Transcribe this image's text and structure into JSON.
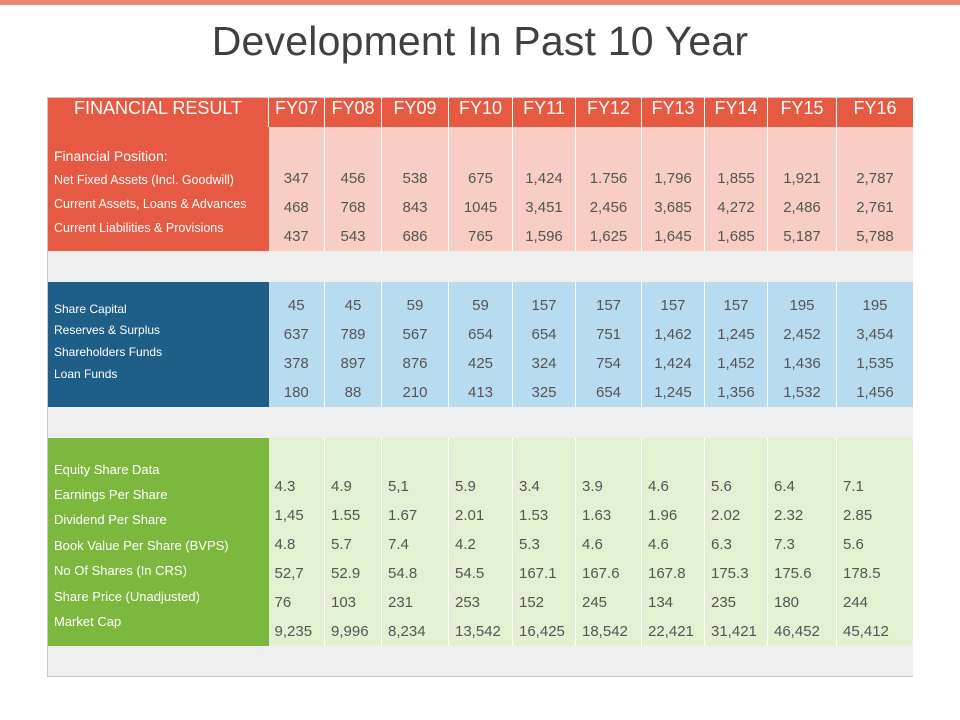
{
  "title": "Development In Past 10 Year",
  "header": {
    "first": "FINANCIAL RESULT",
    "years": [
      "FY07",
      "FY08",
      "FY09",
      "FY10",
      "FY11",
      "FY12",
      "FY13",
      "FY14",
      "FY15",
      "FY16"
    ]
  },
  "financial_position": {
    "heading": "Financial Position:",
    "labels": [
      "Net Fixed Assets (Incl. Goodwill)",
      "Current Assets, Loans & Advances",
      "Current Liabilities & Provisions"
    ],
    "rows": [
      [
        "347",
        "456",
        "538",
        "675",
        "1,424",
        "1.756",
        "1,796",
        "1,855",
        "1,921",
        "2,787"
      ],
      [
        "468",
        "768",
        "843",
        "1045",
        "3,451",
        "2,456",
        "3,685",
        "4,272",
        "2,486",
        "2,761"
      ],
      [
        "437",
        "543",
        "686",
        "765",
        "1,596",
        "1,625",
        "1,645",
        "1,685",
        "5,187",
        "5,788"
      ]
    ]
  },
  "capital": {
    "labels": [
      "Share Capital",
      "Reserves & Surplus",
      "Shareholders Funds",
      "Loan Funds"
    ],
    "rows": [
      [
        "45",
        "45",
        "59",
        "59",
        "157",
        "157",
        "157",
        "157",
        "195",
        "195"
      ],
      [
        "637",
        "789",
        "567",
        "654",
        "654",
        "751",
        "1,462",
        "1,245",
        "2,452",
        "3,454"
      ],
      [
        "378",
        "897",
        "876",
        "425",
        "324",
        "754",
        "1,424",
        "1,452",
        "1,436",
        "1,535"
      ],
      [
        "180",
        "88",
        "210",
        "413",
        "325",
        "654",
        "1,245",
        "1,356",
        "1,532",
        "1,456"
      ]
    ]
  },
  "equity": {
    "heading": "Equity Share Data",
    "labels": [
      "Earnings Per Share",
      "Dividend Per Share",
      "Book Value Per Share (BVPS)",
      "No Of Shares (In CRS)",
      "Share Price (Unadjusted)",
      "Market Cap"
    ],
    "rows": [
      [
        "4.3",
        "4.9",
        "5,1",
        "5.9",
        "3.4",
        "3.9",
        "4.6",
        "5.6",
        "6.4",
        "7.1"
      ],
      [
        "1,45",
        "1.55",
        "1.67",
        "2.01",
        "1.53",
        "1.63",
        "1.96",
        "2.02",
        "2.32",
        "2.85"
      ],
      [
        "4.8",
        "5.7",
        "7.4",
        "4.2",
        "5.3",
        "4.6",
        "4.6",
        "6.3",
        "7.3",
        "5.6"
      ],
      [
        "52,7",
        "52.9",
        "54.8",
        "54.5",
        "167.1",
        "167.6",
        "167.8",
        "175.3",
        "175.6",
        "178.5"
      ],
      [
        "76",
        "103",
        "231",
        "253",
        "152",
        "245",
        "134",
        "235",
        "180",
        "244"
      ],
      [
        "9,235",
        "9,996",
        "8,234",
        "13,542",
        "16,425",
        "18,542",
        "22,421",
        "31,421",
        "46,452",
        "45,412"
      ]
    ]
  }
}
